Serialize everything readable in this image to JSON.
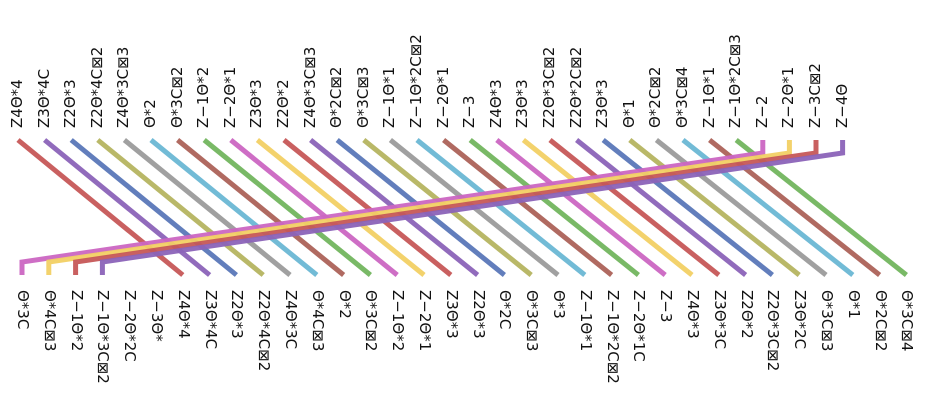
{
  "wire_colors": [
    "#c65757",
    "#8b63b8",
    "#5a77b8",
    "#b5b460",
    "#9b9b9b",
    "#6ab7d4",
    "#ac6258",
    "#72b55e",
    "#cb66c2",
    "#f2d064"
  ],
  "top_labels": [
    "Z4Θ*4",
    "Z3Θ*4C",
    "Z2Θ*3",
    "Z2Θ*4C⊠2",
    "Z4Θ*3C⊠3",
    "Θ*2",
    "Θ*3C⊠2",
    "Z−1Θ*2",
    "Z−2Θ*1",
    "Z3Θ*3",
    "Z2Θ*2",
    "Z4Θ*3C⊠3",
    "Θ*2C⊠2",
    "Θ*3C⊠3",
    "Z−1Θ*1",
    "Z−1Θ*2C⊠2",
    "Z−2Θ*1",
    "Z−3",
    "Z4Θ*3",
    "Z3Θ*3",
    "Z2Θ*3C⊠2",
    "Z2Θ*2C⊠2",
    "Z3Θ*3",
    "Θ*1",
    "Θ*2C⊠2",
    "Θ*3C⊠4",
    "Z−1Θ*1",
    "Z−1Θ*2C⊠3",
    "Z−2",
    "Z−2Θ*1",
    "Z−3C⊠2",
    "Z−4Θ"
  ],
  "bottom_labels": [
    "Θ*3C",
    "Θ*4C⊠3",
    "Z−1Θ*2",
    "Z−1Θ*3C⊠2",
    "Z−2Θ*2C",
    "Z−3Θ*",
    "Z4Θ*4",
    "Z3Θ*4C",
    "Z2Θ*3",
    "Z2Θ*4C⊠2",
    "Z4Θ*3C",
    "Θ*4C⊠3",
    "Θ*2",
    "Θ*3C⊠2",
    "Z−1Θ*2",
    "Z−2Θ*1",
    "Z3Θ*3",
    "Z2Θ*3",
    "Θ*2C",
    "Θ*3C⊠3",
    "Θ*3",
    "Z−1Θ*1",
    "Z−1Θ*2C⊠2",
    "Z−2Θ*1C",
    "Z−3",
    "Z4Θ*3",
    "Z3Θ*3C",
    "Z2Θ*2",
    "Z2Θ*3C⊠2",
    "Z3Θ*2C",
    "Θ*3C⊠3",
    "Θ*1",
    "Θ*2C⊠2",
    "Θ*3C⊠4"
  ],
  "top_label_left_x": [
    10,
    34,
    56,
    80,
    100,
    122,
    144,
    168,
    190,
    212,
    234,
    256,
    276,
    298,
    320,
    342,
    364,
    386,
    408,
    430,
    452,
    474,
    496,
    518,
    540,
    562,
    584,
    606,
    628,
    650,
    672,
    694
  ],
  "wires": [
    {
      "top": 0,
      "bottom": 6
    },
    {
      "top": 1,
      "bottom": 7
    },
    {
      "top": 2,
      "bottom": 8
    },
    {
      "top": 3,
      "bottom": 9
    },
    {
      "top": 4,
      "bottom": 10
    },
    {
      "top": 5,
      "bottom": 11
    },
    {
      "top": 6,
      "bottom": 12
    },
    {
      "top": 7,
      "bottom": 13
    },
    {
      "top": 8,
      "bottom": 14
    },
    {
      "top": 9,
      "bottom": 15
    },
    {
      "top": 10,
      "bottom": 16
    },
    {
      "top": 11,
      "bottom": 17
    },
    {
      "top": 12,
      "bottom": 18
    },
    {
      "top": 13,
      "bottom": 19
    },
    {
      "top": 14,
      "bottom": 20
    },
    {
      "top": 15,
      "bottom": 21
    },
    {
      "top": 16,
      "bottom": 22
    },
    {
      "top": 17,
      "bottom": 23
    },
    {
      "top": 18,
      "bottom": 24
    },
    {
      "top": 19,
      "bottom": 25
    },
    {
      "top": 20,
      "bottom": 26
    },
    {
      "top": 21,
      "bottom": 27
    },
    {
      "top": 22,
      "bottom": 28
    },
    {
      "top": 23,
      "bottom": 29
    },
    {
      "top": 24,
      "bottom": 30
    },
    {
      "top": 25,
      "bottom": 31
    },
    {
      "top": 26,
      "bottom": 32
    },
    {
      "top": 27,
      "bottom": 33
    },
    {
      "top": 28,
      "bottom": 0
    },
    {
      "top": 29,
      "bottom": 1
    },
    {
      "top": 30,
      "bottom": 2
    },
    {
      "top": 31,
      "bottom": 3
    }
  ]
}
